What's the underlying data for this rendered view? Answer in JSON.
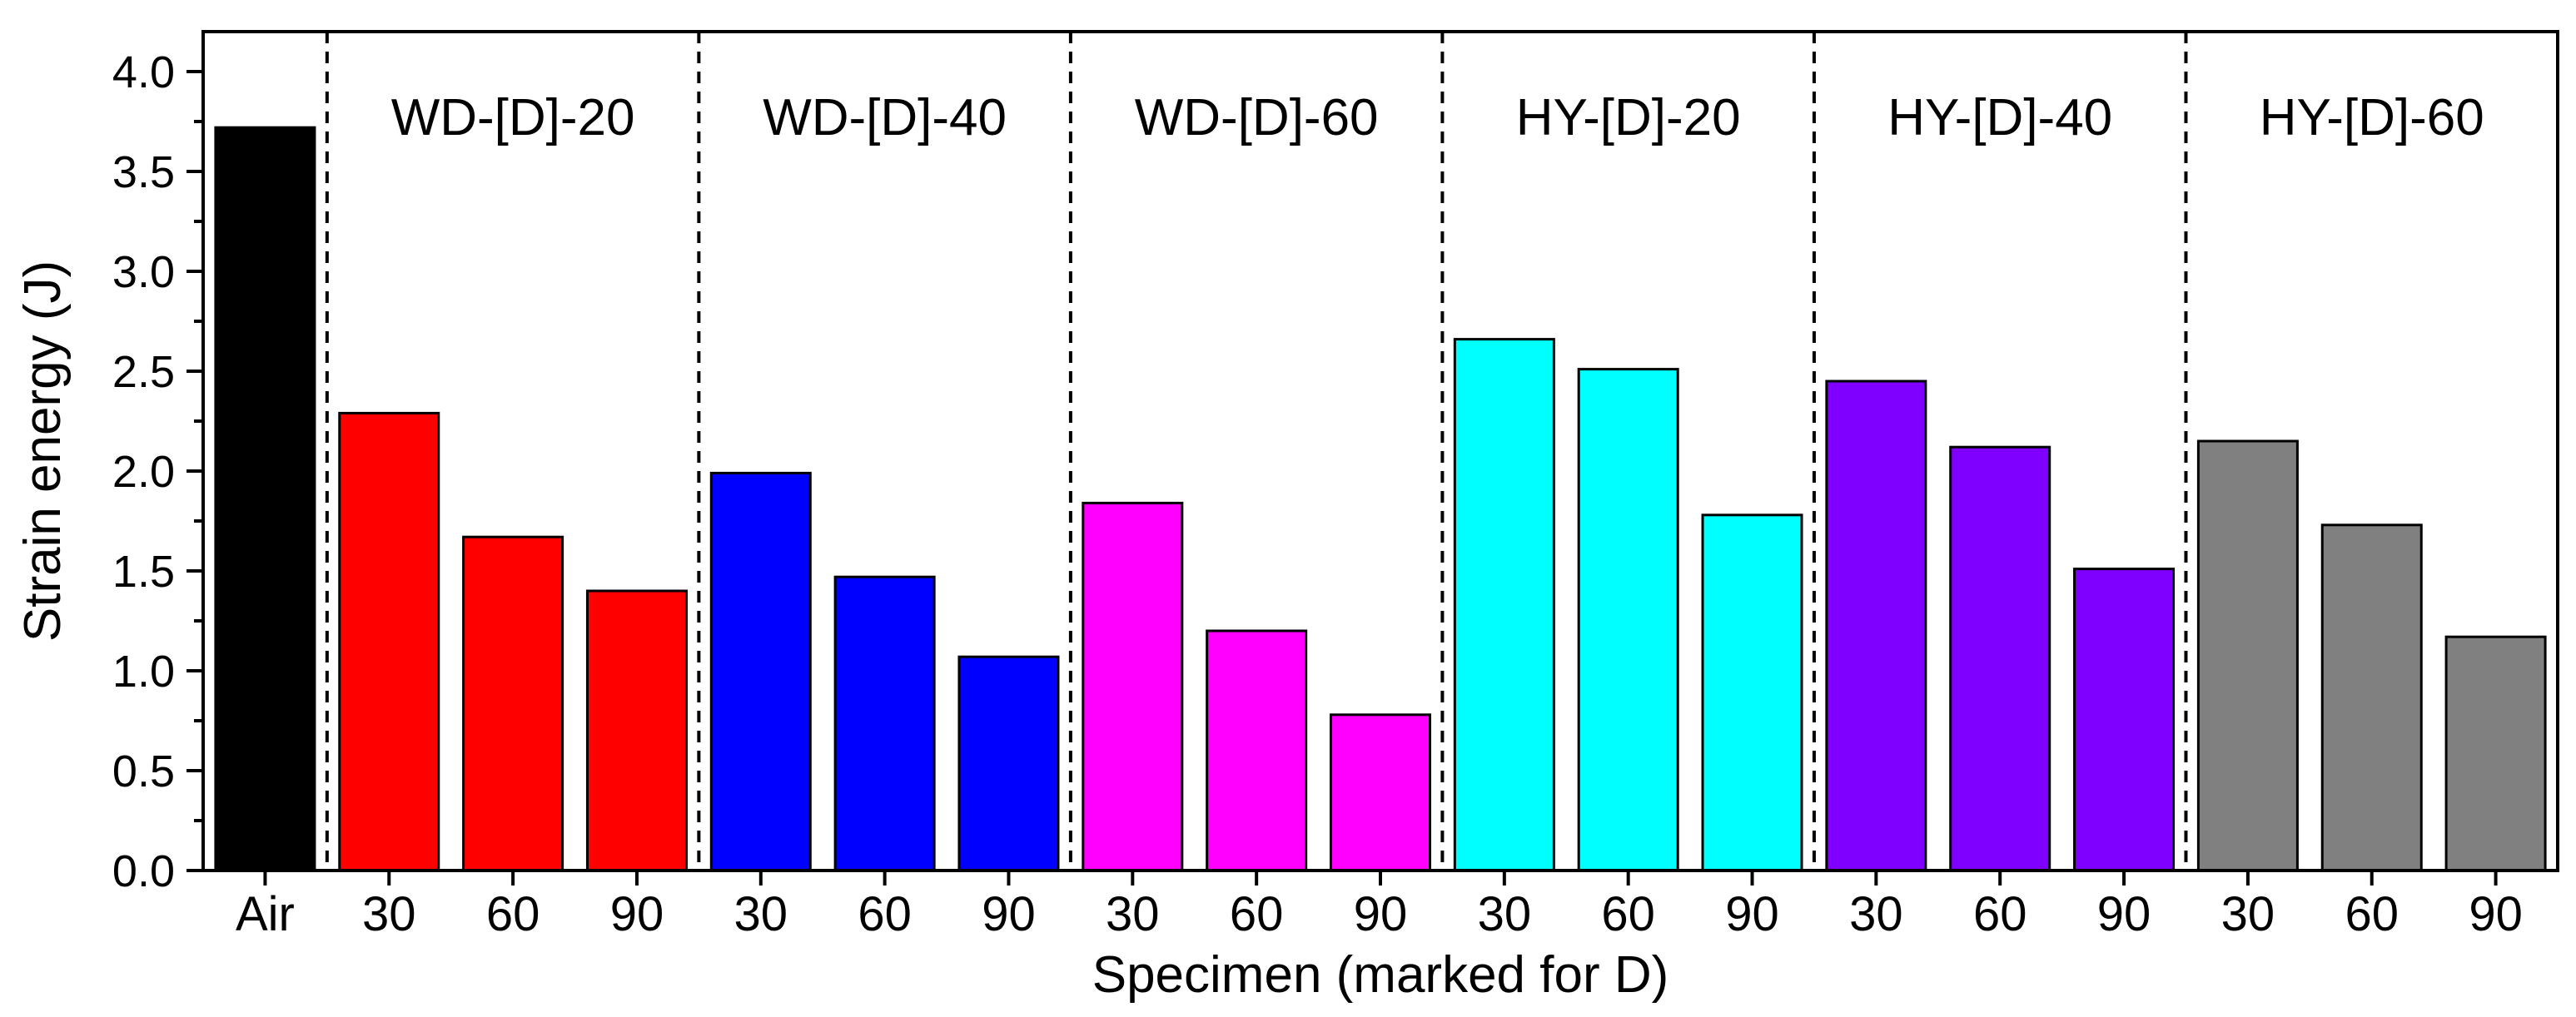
{
  "chart_data": {
    "type": "bar",
    "xlabel": "Specimen (marked for D)",
    "ylabel": "Strain energy (J)",
    "ylim": [
      0,
      4.2
    ],
    "yticks": [
      "0.0",
      "0.5",
      "1.0",
      "1.5",
      "2.0",
      "2.5",
      "3.0",
      "3.5",
      "4.0"
    ],
    "categories": [
      "Air",
      "30",
      "60",
      "90",
      "30",
      "60",
      "90",
      "30",
      "60",
      "90",
      "30",
      "60",
      "90",
      "30",
      "60",
      "90",
      "30",
      "60",
      "90"
    ],
    "values": [
      3.72,
      2.29,
      1.67,
      1.4,
      1.99,
      1.47,
      1.07,
      1.84,
      1.2,
      0.78,
      2.66,
      2.51,
      1.78,
      2.45,
      2.12,
      1.51,
      2.15,
      1.73,
      1.17
    ],
    "bar_colors": [
      "#000000",
      "#ff0000",
      "#ff0000",
      "#ff0000",
      "#0000ff",
      "#0000ff",
      "#0000ff",
      "#ff00ff",
      "#ff00ff",
      "#ff00ff",
      "#00ffff",
      "#00ffff",
      "#00ffff",
      "#8000ff",
      "#8000ff",
      "#8000ff",
      "#808080",
      "#808080",
      "#808080"
    ],
    "groups": [
      {
        "label": "WD-[D]-20",
        "start": 1,
        "end": 3
      },
      {
        "label": "WD-[D]-40",
        "start": 4,
        "end": 6
      },
      {
        "label": "WD-[D]-60",
        "start": 7,
        "end": 9
      },
      {
        "label": "HY-[D]-20",
        "start": 10,
        "end": 12
      },
      {
        "label": "HY-[D]-40",
        "start": 13,
        "end": 15
      },
      {
        "label": "HY-[D]-60",
        "start": 16,
        "end": 18
      }
    ],
    "legend": "none",
    "grid": false
  }
}
